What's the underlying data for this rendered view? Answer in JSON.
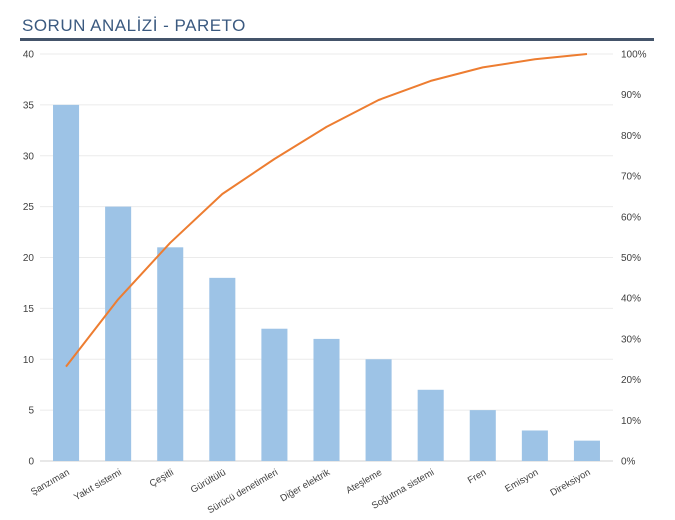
{
  "page": {
    "title": "SORUN ANALİZİ - PARETO"
  },
  "chart_data": {
    "type": "bar",
    "categories": [
      "Şanzıman",
      "Yakıt sistemi",
      "Çeşitli",
      "Gürültülü",
      "Sürücü denetimleri",
      "Diğer elektrik",
      "Ateşleme",
      "Soğutma sistemi",
      "Fren",
      "Emisyon",
      "Direksiyon"
    ],
    "series": [
      {
        "name": "",
        "type": "bar",
        "axis": "left",
        "color": "#9dc3e6",
        "values": [
          35,
          25,
          21,
          18,
          13,
          12,
          10,
          7,
          5,
          3,
          2
        ]
      },
      {
        "name": "",
        "type": "line",
        "axis": "right",
        "color": "#ed7d31",
        "values": [
          23.2,
          39.7,
          53.6,
          65.6,
          74.2,
          82.1,
          88.7,
          93.4,
          96.7,
          98.7,
          100
        ]
      }
    ],
    "ylim_left": [
      0,
      40
    ],
    "yticks_left": [
      0,
      5,
      10,
      15,
      20,
      25,
      30,
      35,
      40
    ],
    "ylim_right": [
      0,
      100
    ],
    "yticks_right": [
      "0%",
      "10%",
      "20%",
      "30%",
      "40%",
      "50%",
      "60%",
      "70%",
      "80%",
      "90%",
      "100%"
    ],
    "grid": true,
    "legend": "none"
  }
}
